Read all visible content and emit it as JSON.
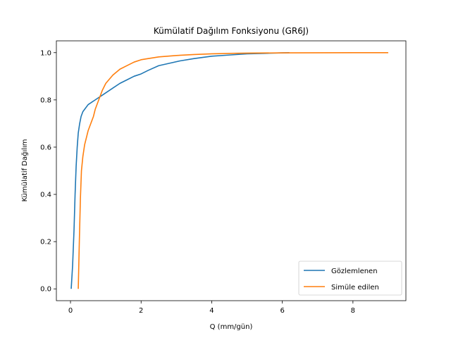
{
  "chart_data": {
    "type": "line",
    "title": "Kümülatif Dağılım Fonksiyonu (GR6J)",
    "xlabel": "Q (mm/gün)",
    "ylabel": "Kümülatif Dağılım",
    "xlim": [
      -0.4,
      9.5
    ],
    "ylim": [
      -0.05,
      1.05
    ],
    "xticks": [
      0,
      2,
      4,
      6,
      8
    ],
    "xtick_labels": [
      "0",
      "2",
      "4",
      "6",
      "8"
    ],
    "yticks": [
      0.0,
      0.2,
      0.4,
      0.6,
      0.8,
      1.0
    ],
    "ytick_labels": [
      "0.0",
      "0.2",
      "0.4",
      "0.6",
      "0.8",
      "1.0"
    ],
    "grid": false,
    "legend_position": "lower-right",
    "series": [
      {
        "name": "Gözlemlenen",
        "color": "#1f77b4",
        "x": [
          0.02,
          0.06,
          0.1,
          0.13,
          0.16,
          0.19,
          0.22,
          0.26,
          0.3,
          0.35,
          0.4,
          0.5,
          0.6,
          0.7,
          0.8,
          0.9,
          1.0,
          1.2,
          1.4,
          1.6,
          1.8,
          2.0,
          2.2,
          2.5,
          2.8,
          3.1,
          3.5,
          4.0,
          4.5,
          5.0,
          5.5,
          6.0,
          6.2
        ],
        "y": [
          0.0,
          0.1,
          0.25,
          0.4,
          0.52,
          0.6,
          0.66,
          0.7,
          0.73,
          0.75,
          0.76,
          0.78,
          0.79,
          0.8,
          0.81,
          0.82,
          0.83,
          0.85,
          0.87,
          0.885,
          0.9,
          0.91,
          0.925,
          0.945,
          0.955,
          0.965,
          0.975,
          0.985,
          0.99,
          0.995,
          0.997,
          0.999,
          1.0
        ]
      },
      {
        "name": "Simüle edilen",
        "color": "#ff7f0e",
        "x": [
          0.22,
          0.25,
          0.28,
          0.31,
          0.35,
          0.4,
          0.45,
          0.5,
          0.55,
          0.6,
          0.65,
          0.7,
          0.8,
          0.9,
          1.0,
          1.2,
          1.4,
          1.6,
          1.8,
          2.0,
          2.2,
          2.5,
          3.0,
          3.5,
          4.0,
          4.5,
          5.0,
          6.0,
          7.0,
          8.0,
          9.0
        ],
        "y": [
          0.0,
          0.2,
          0.38,
          0.5,
          0.56,
          0.61,
          0.64,
          0.67,
          0.69,
          0.71,
          0.73,
          0.76,
          0.8,
          0.84,
          0.87,
          0.905,
          0.93,
          0.945,
          0.96,
          0.97,
          0.975,
          0.982,
          0.988,
          0.992,
          0.995,
          0.997,
          0.998,
          0.999,
          0.9995,
          1.0,
          1.0
        ]
      }
    ]
  }
}
